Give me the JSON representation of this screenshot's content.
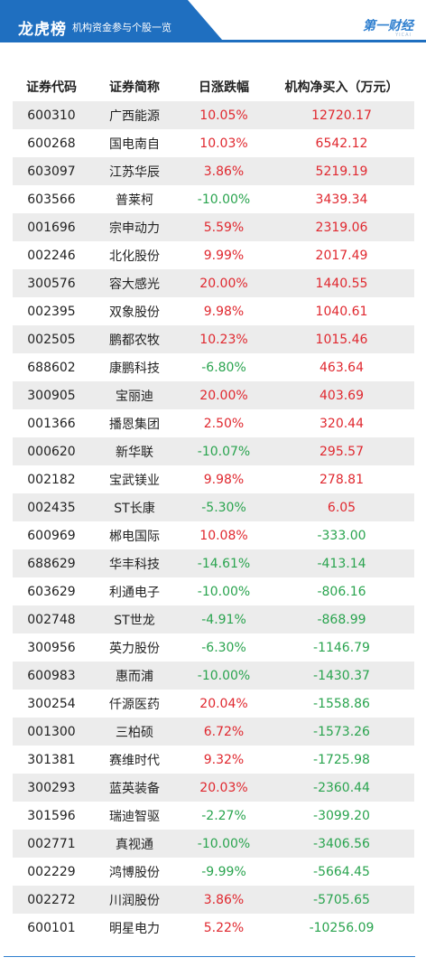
{
  "header": {
    "title": "龙虎榜",
    "subtitle": "机构资金参与个股一览",
    "logo_text": "第一财经",
    "logo_sub": "YICAI"
  },
  "colors": {
    "header_blue": "#1f6fc0",
    "up_red": "#e0282f",
    "down_green": "#2aa44f",
    "stripe_gray": "#ececec"
  },
  "table": {
    "columns": [
      "证券代码",
      "证券简称",
      "日涨跌幅",
      "机构净买入（万元）"
    ],
    "rows": [
      {
        "code": "600310",
        "name": "广西能源",
        "change": "10.05%",
        "net": "12720.17",
        "dir": "up",
        "net_dir": "up"
      },
      {
        "code": "600268",
        "name": "国电南自",
        "change": "10.03%",
        "net": "6542.12",
        "dir": "up",
        "net_dir": "up"
      },
      {
        "code": "603097",
        "name": "江苏华辰",
        "change": "3.86%",
        "net": "5219.19",
        "dir": "up",
        "net_dir": "up"
      },
      {
        "code": "603566",
        "name": "普莱柯",
        "change": "-10.00%",
        "net": "3439.34",
        "dir": "down",
        "net_dir": "up"
      },
      {
        "code": "001696",
        "name": "宗申动力",
        "change": "5.59%",
        "net": "2319.06",
        "dir": "up",
        "net_dir": "up"
      },
      {
        "code": "002246",
        "name": "北化股份",
        "change": "9.99%",
        "net": "2017.49",
        "dir": "up",
        "net_dir": "up"
      },
      {
        "code": "300576",
        "name": "容大感光",
        "change": "20.00%",
        "net": "1440.55",
        "dir": "up",
        "net_dir": "up"
      },
      {
        "code": "002395",
        "name": "双象股份",
        "change": "9.98%",
        "net": "1040.61",
        "dir": "up",
        "net_dir": "up"
      },
      {
        "code": "002505",
        "name": "鹏都农牧",
        "change": "10.23%",
        "net": "1015.46",
        "dir": "up",
        "net_dir": "up"
      },
      {
        "code": "688602",
        "name": "康鹏科技",
        "change": "-6.80%",
        "net": "463.64",
        "dir": "down",
        "net_dir": "up"
      },
      {
        "code": "300905",
        "name": "宝丽迪",
        "change": "20.00%",
        "net": "403.69",
        "dir": "up",
        "net_dir": "up"
      },
      {
        "code": "001366",
        "name": "播恩集团",
        "change": "2.50%",
        "net": "320.44",
        "dir": "up",
        "net_dir": "up"
      },
      {
        "code": "000620",
        "name": "新华联",
        "change": "-10.07%",
        "net": "295.57",
        "dir": "down",
        "net_dir": "up"
      },
      {
        "code": "002182",
        "name": "宝武镁业",
        "change": "9.98%",
        "net": "278.81",
        "dir": "up",
        "net_dir": "up"
      },
      {
        "code": "002435",
        "name": "ST长康",
        "change": "-5.30%",
        "net": "6.05",
        "dir": "down",
        "net_dir": "up"
      },
      {
        "code": "600969",
        "name": "郴电国际",
        "change": "10.08%",
        "net": "-333.00",
        "dir": "up",
        "net_dir": "down"
      },
      {
        "code": "688629",
        "name": "华丰科技",
        "change": "-14.61%",
        "net": "-413.14",
        "dir": "down",
        "net_dir": "down"
      },
      {
        "code": "603629",
        "name": "利通电子",
        "change": "-10.00%",
        "net": "-806.16",
        "dir": "down",
        "net_dir": "down"
      },
      {
        "code": "002748",
        "name": "ST世龙",
        "change": "-4.91%",
        "net": "-868.99",
        "dir": "down",
        "net_dir": "down"
      },
      {
        "code": "300956",
        "name": "英力股份",
        "change": "-6.30%",
        "net": "-1146.79",
        "dir": "down",
        "net_dir": "down"
      },
      {
        "code": "600983",
        "name": "惠而浦",
        "change": "-10.00%",
        "net": "-1430.37",
        "dir": "down",
        "net_dir": "down"
      },
      {
        "code": "300254",
        "name": "仟源医药",
        "change": "20.04%",
        "net": "-1558.86",
        "dir": "up",
        "net_dir": "down"
      },
      {
        "code": "001300",
        "name": "三柏硕",
        "change": "6.72%",
        "net": "-1573.26",
        "dir": "up",
        "net_dir": "down"
      },
      {
        "code": "301381",
        "name": "赛维时代",
        "change": "9.32%",
        "net": "-1725.98",
        "dir": "up",
        "net_dir": "down"
      },
      {
        "code": "300293",
        "name": "蓝英装备",
        "change": "20.03%",
        "net": "-2360.44",
        "dir": "up",
        "net_dir": "down"
      },
      {
        "code": "301596",
        "name": "瑞迪智驱",
        "change": "-2.27%",
        "net": "-3099.20",
        "dir": "down",
        "net_dir": "down"
      },
      {
        "code": "002771",
        "name": "真视通",
        "change": "-10.00%",
        "net": "-3406.56",
        "dir": "down",
        "net_dir": "down"
      },
      {
        "code": "002229",
        "name": "鸿博股份",
        "change": "-9.99%",
        "net": "-5664.45",
        "dir": "down",
        "net_dir": "down"
      },
      {
        "code": "002272",
        "name": "川润股份",
        "change": "3.86%",
        "net": "-5705.65",
        "dir": "up",
        "net_dir": "down"
      },
      {
        "code": "600101",
        "name": "明星电力",
        "change": "5.22%",
        "net": "-10256.09",
        "dir": "up",
        "net_dir": "down"
      }
    ]
  }
}
